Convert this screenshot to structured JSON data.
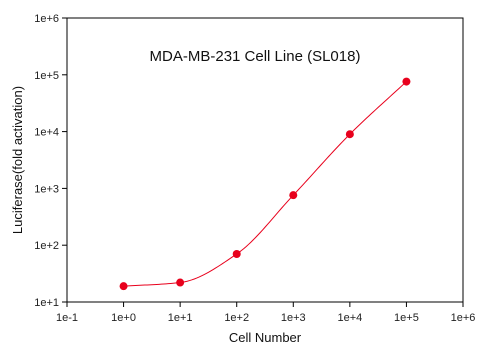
{
  "chart_data": {
    "type": "scatter",
    "title": "MDA-MB-231 Cell Line (SL018)",
    "xlabel": "Cell Number",
    "ylabel": "Luciferase(fold activation)",
    "x_scale": "log",
    "y_scale": "log",
    "xlim": [
      0.1,
      1000000
    ],
    "ylim": [
      10,
      1000000
    ],
    "x_ticks": [
      0.1,
      1,
      10,
      100,
      1000,
      10000,
      100000,
      1000000
    ],
    "x_tick_labels": [
      "1e-1",
      "1e+0",
      "1e+1",
      "1e+2",
      "1e+3",
      "1e+4",
      "1e+5",
      "1e+6"
    ],
    "y_ticks": [
      10,
      100,
      1000,
      10000,
      100000,
      1000000
    ],
    "y_tick_labels": [
      "1e+1",
      "1e+2",
      "1e+3",
      "1e+4",
      "1e+5",
      "1e+6"
    ],
    "grid": false,
    "series": [
      {
        "x": [
          1,
          10,
          100,
          1000,
          10000,
          100000
        ],
        "y": [
          19,
          22,
          70,
          760,
          9000,
          76000
        ],
        "color": "#e8001c",
        "marker": "circle",
        "fit_line": true
      }
    ]
  }
}
